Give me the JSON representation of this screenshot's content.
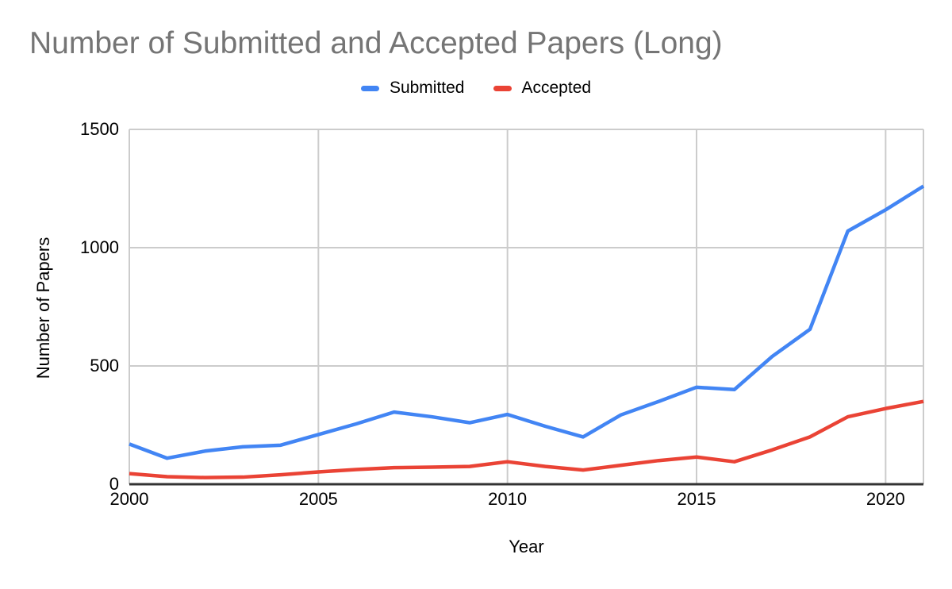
{
  "chart": {
    "title": "Number of Submitted and Accepted Papers (Long)",
    "legend": [
      {
        "label": "Submitted",
        "color": "#4285f4"
      },
      {
        "label": "Accepted",
        "color": "#ea4335"
      }
    ],
    "y_axis": {
      "title": "Number of Papers",
      "ticks": [
        0,
        500,
        1000,
        1500
      ]
    },
    "x_axis": {
      "title": "Year",
      "ticks": [
        2000,
        2005,
        2010,
        2015,
        2020
      ]
    },
    "colors": {
      "title_text": "#757575",
      "tick_text": "#000000",
      "grid": "#cccccc",
      "axis": "#333333",
      "background": "#ffffff"
    }
  },
  "chart_data": {
    "type": "line",
    "title": "Number of Submitted and Accepted Papers (Long)",
    "xlabel": "Year",
    "ylabel": "Number of Papers",
    "x": [
      2000,
      2001,
      2002,
      2003,
      2004,
      2005,
      2006,
      2007,
      2008,
      2009,
      2010,
      2011,
      2012,
      2013,
      2014,
      2015,
      2016,
      2017,
      2018,
      2019,
      2020,
      2021
    ],
    "series": [
      {
        "name": "Submitted",
        "color": "#4285f4",
        "values": [
          170,
          110,
          140,
          158,
          165,
          210,
          255,
          305,
          285,
          260,
          295,
          245,
          200,
          293,
          350,
          410,
          400,
          540,
          655,
          1070,
          1160,
          1260
        ]
      },
      {
        "name": "Accepted",
        "color": "#ea4335",
        "values": [
          45,
          32,
          28,
          30,
          40,
          52,
          62,
          70,
          72,
          75,
          95,
          75,
          60,
          80,
          100,
          115,
          95,
          145,
          200,
          285,
          320,
          350
        ]
      }
    ],
    "ylim": [
      0,
      1500
    ],
    "xlim": [
      2000,
      2021
    ],
    "grid": true,
    "legend_position": "top"
  }
}
